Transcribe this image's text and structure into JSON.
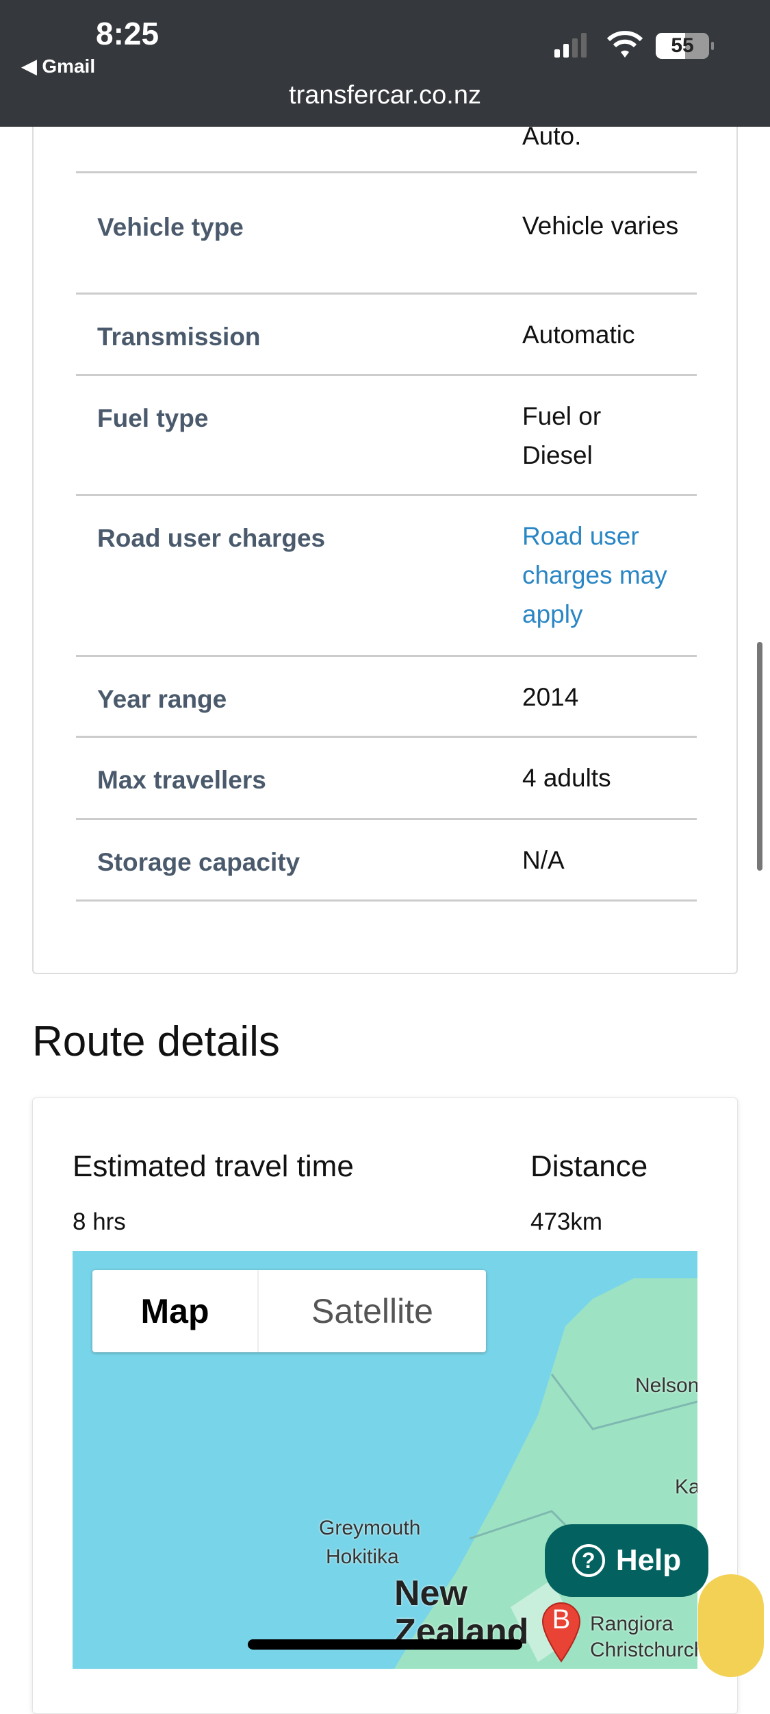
{
  "status_bar": {
    "time": "8:25",
    "back_app": "◀ Gmail",
    "battery": "55",
    "url": "transfercar.co.nz"
  },
  "vehicle_details": {
    "partial_value": "Auto.",
    "rows": [
      {
        "label": "Vehicle type",
        "value": "Vehicle varies"
      },
      {
        "label": "Transmission",
        "value": "Automatic"
      },
      {
        "label": "Fuel type",
        "value": "Fuel or Diesel"
      },
      {
        "label": "Road user charges",
        "value": "Road user charges may apply"
      },
      {
        "label": "Year range",
        "value": "2014"
      },
      {
        "label": "Max travellers",
        "value": "4 adults"
      },
      {
        "label": "Storage capacity",
        "value": "N/A"
      }
    ]
  },
  "route": {
    "title": "Route details",
    "travel_time_label": "Estimated travel time",
    "travel_time": "8 hrs",
    "distance_label": "Distance",
    "distance": "473km",
    "map": {
      "map_tab": "Map",
      "satellite_tab": "Satellite",
      "selected": "Map",
      "labels": [
        "Nelson",
        "Greymouth",
        "Hokitika",
        "New Zealand",
        "Rangiora",
        "Christchurch",
        "Ka"
      ],
      "marker": "B",
      "land_color": "#9de3c3",
      "water_color": "#78d4e8"
    }
  },
  "help_button": {
    "label": "Help",
    "color": "#03615f"
  },
  "icons": [
    "cellular-signal-icon",
    "wifi-icon",
    "battery-icon",
    "help-circle-icon",
    "cookie-icon",
    "map-marker-icon"
  ]
}
